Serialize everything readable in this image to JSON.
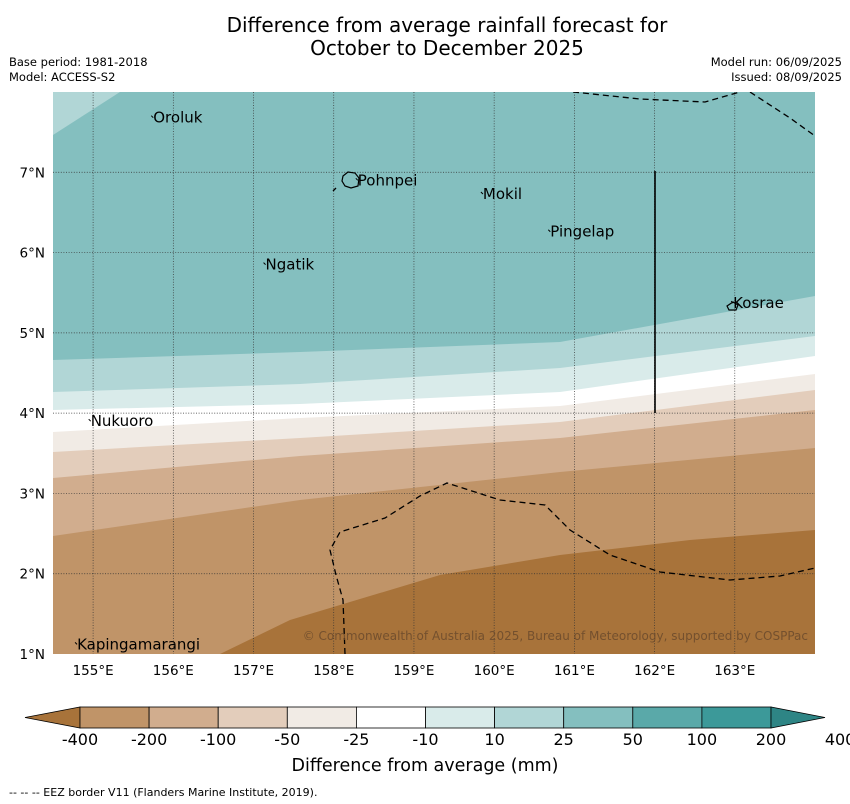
{
  "title_line1": "Difference from average rainfall forecast for",
  "title_line2": "October to December 2025",
  "base_period": "Base period: 1981-2018",
  "model": "Model: ACCESS-S2",
  "model_run": "Model run: 06/09/2025",
  "issued": "Issued: 08/09/2025",
  "copyright": "© Commonwealth of Australia 2025, Bureau of Meteorology, supported by COSPPac",
  "lat_ticks": [
    "7°N",
    "6°N",
    "5°N",
    "4°N",
    "3°N",
    "2°N",
    "1°N"
  ],
  "lon_ticks": [
    "155°E",
    "156°E",
    "157°E",
    "158°E",
    "159°E",
    "160°E",
    "161°E",
    "162°E",
    "163°E"
  ],
  "places": [
    {
      "name": "Oroluk",
      "lon": 155.75,
      "lat": 7.63
    },
    {
      "name": "Pohnpei",
      "lon": 158.3,
      "lat": 6.85
    },
    {
      "name": "Mokil",
      "lon": 159.86,
      "lat": 6.68
    },
    {
      "name": "Pingelap",
      "lon": 160.7,
      "lat": 6.21
    },
    {
      "name": "Ngatik",
      "lon": 157.15,
      "lat": 5.8
    },
    {
      "name": "Kosrae",
      "lon": 162.98,
      "lat": 5.32
    },
    {
      "name": "Nukuoro",
      "lon": 154.97,
      "lat": 3.85
    },
    {
      "name": "Kapingamarangi",
      "lon": 154.8,
      "lat": 1.07
    }
  ],
  "colorbar": {
    "labels": [
      "-400",
      "-200",
      "-100",
      "-50",
      "-25",
      "-10",
      "10",
      "25",
      "50",
      "100",
      "200",
      "400"
    ],
    "colors": [
      "#a8733a",
      "#c09468",
      "#d1ad8e",
      "#e3cdbb",
      "#f1ebe5",
      "#ffffff",
      "#d9ebea",
      "#b1d6d6",
      "#84bfbf",
      "#5aa9a9",
      "#3c9999",
      "#2e8585"
    ],
    "title": "Difference from average (mm)"
  },
  "footnote": "--  --  -- EEZ border V11 (Flanders Marine Institute, 2019)."
}
